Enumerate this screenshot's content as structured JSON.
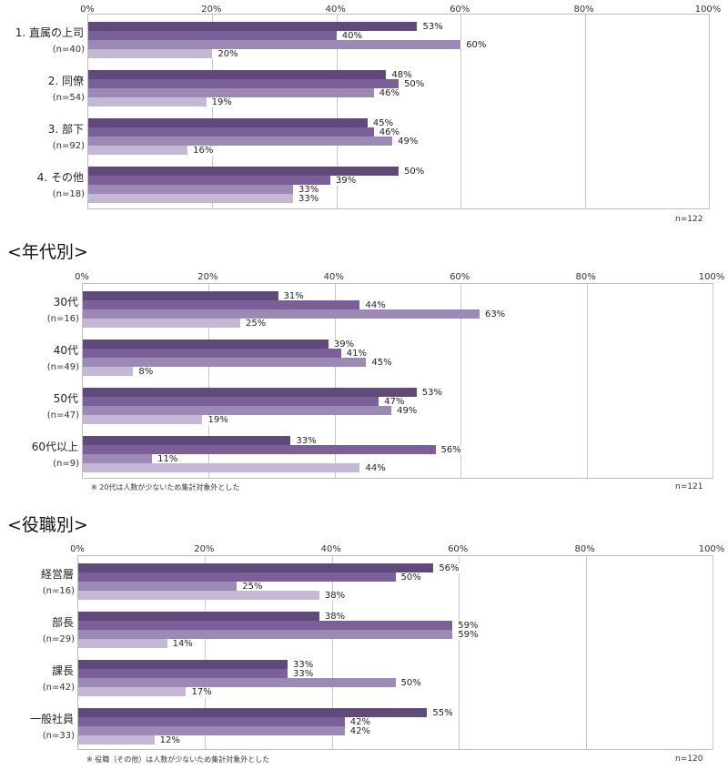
{
  "series_colors": [
    "#5f4a7a",
    "#7a5f99",
    "#9c89b5",
    "#c4b8d4"
  ],
  "chart_data": [
    {
      "type": "bar",
      "orientation": "horizontal",
      "title": "",
      "xlim": [
        0,
        100
      ],
      "ticks": [
        "0%",
        "20%",
        "40%",
        "60%",
        "80%",
        "100%"
      ],
      "grid": true,
      "categories": [
        {
          "label": "1. 直属の上司",
          "n": "(n=40)",
          "values": [
            53,
            40,
            60,
            20
          ]
        },
        {
          "label": "2. 同僚",
          "n": "(n=54)",
          "values": [
            48,
            50,
            46,
            19
          ]
        },
        {
          "label": "3. 部下",
          "n": "(n=92)",
          "values": [
            45,
            46,
            49,
            16
          ]
        },
        {
          "label": "4. その他",
          "n": "(n=18)",
          "values": [
            50,
            39,
            33,
            33
          ]
        }
      ],
      "note": "",
      "total": "n=122"
    },
    {
      "type": "bar",
      "orientation": "horizontal",
      "title": "<年代別>",
      "xlim": [
        0,
        100
      ],
      "ticks": [
        "0%",
        "20%",
        "40%",
        "60%",
        "80%",
        "100%"
      ],
      "grid": true,
      "categories": [
        {
          "label": "30代",
          "n": "(n=16)",
          "values": [
            31,
            44,
            63,
            25
          ]
        },
        {
          "label": "40代",
          "n": "(n=49)",
          "values": [
            39,
            41,
            45,
            8
          ]
        },
        {
          "label": "50代",
          "n": "(n=47)",
          "values": [
            53,
            47,
            49,
            19
          ]
        },
        {
          "label": "60代以上",
          "n": "(n=9)",
          "values": [
            33,
            56,
            11,
            44
          ]
        }
      ],
      "note": "※ 20代は人数が少ないため集計対象外とした",
      "total": "n=121"
    },
    {
      "type": "bar",
      "orientation": "horizontal",
      "title": "<役職別>",
      "xlim": [
        0,
        100
      ],
      "ticks": [
        "0%",
        "20%",
        "40%",
        "60%",
        "80%",
        "100%"
      ],
      "grid": true,
      "categories": [
        {
          "label": "経営層",
          "n": "(n=16)",
          "values": [
            56,
            50,
            25,
            38
          ]
        },
        {
          "label": "部長",
          "n": "(n=29)",
          "values": [
            38,
            59,
            59,
            14
          ]
        },
        {
          "label": "課長",
          "n": "(n=42)",
          "values": [
            33,
            33,
            50,
            17
          ]
        },
        {
          "label": "一般社員",
          "n": "(n=33)",
          "values": [
            55,
            42,
            42,
            12
          ]
        }
      ],
      "note": "※ 役職（その他）は人数が少ないため集計対象外とした",
      "total": "n=120"
    }
  ]
}
